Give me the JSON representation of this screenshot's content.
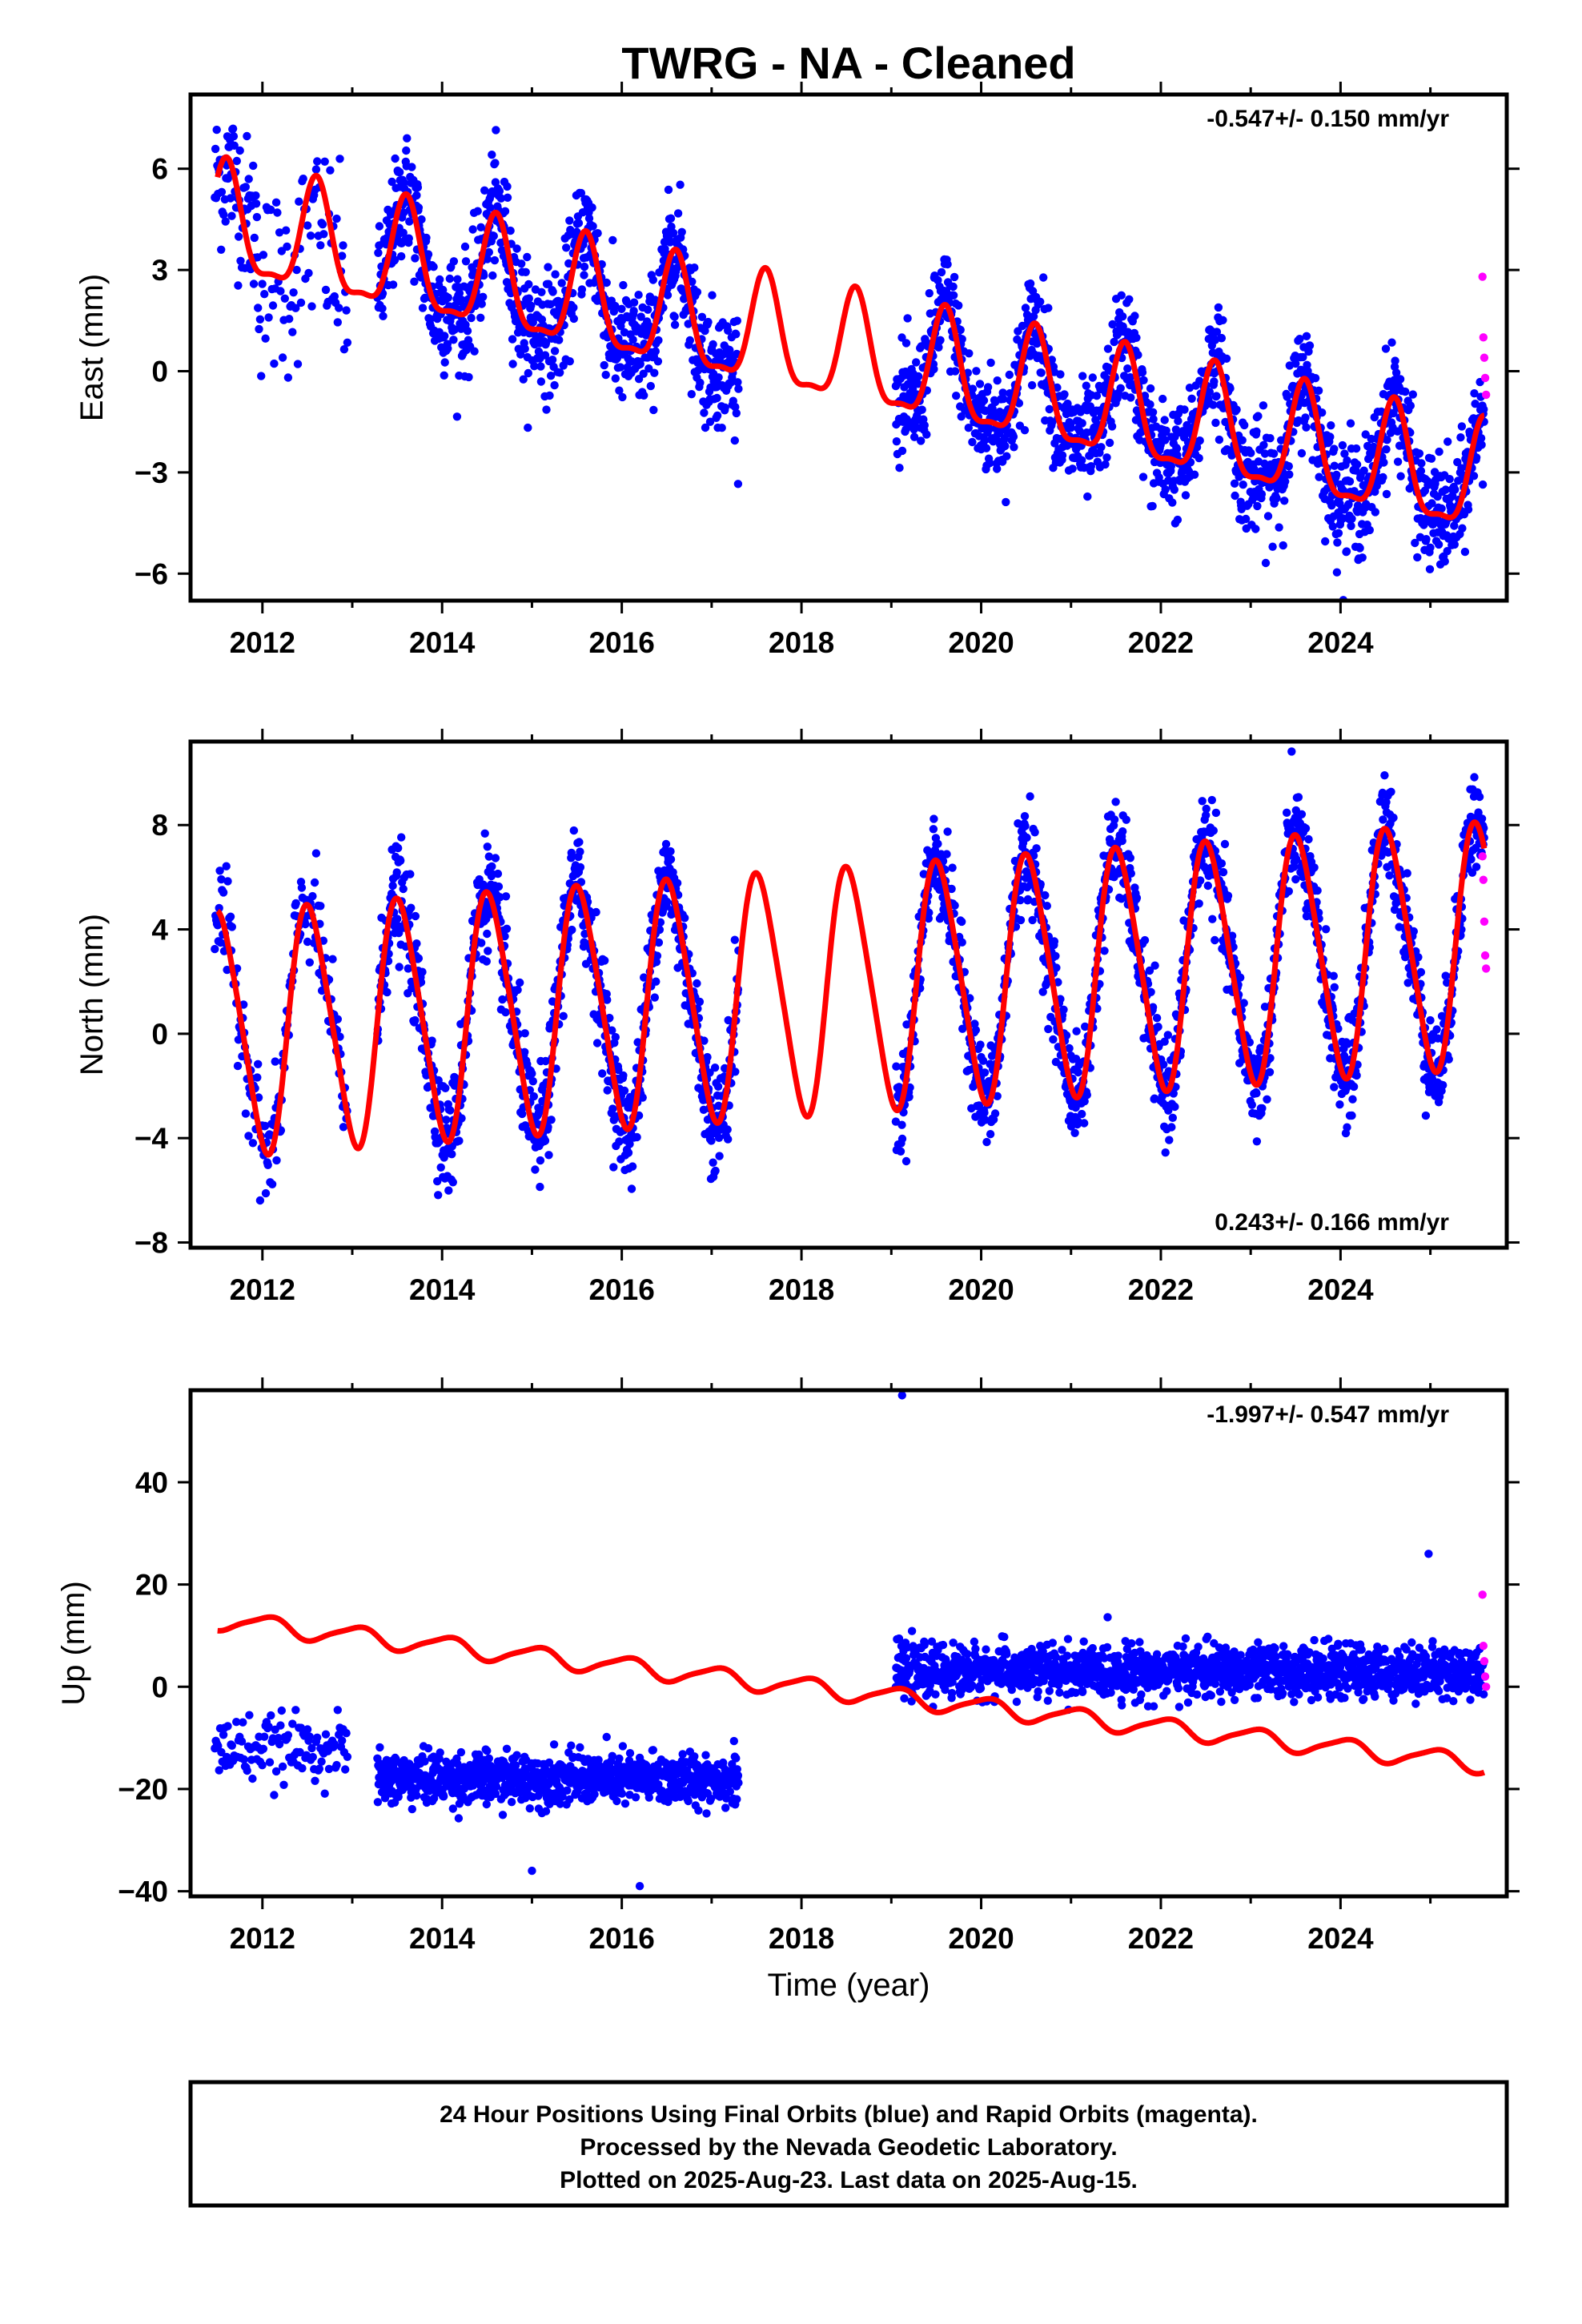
{
  "title": "TWRG  - NA - Cleaned",
  "x_axis_label": "Time (year)",
  "caption": [
    "24 Hour Positions Using Final Orbits (blue) and Rapid Orbits (magenta).",
    "Processed by the Nevada Geodetic Laboratory.",
    "Plotted on 2025-Aug-23. Last data on 2025-Aug-15."
  ],
  "colors": {
    "final_orbits": "#0000ff",
    "rapid_orbits": "#ff00ff",
    "model": "#ff0000",
    "frame": "#000000"
  },
  "chart_data": [
    {
      "type": "scatter",
      "component": "east",
      "ylabel": "East (mm)",
      "rate_text": "-0.547+/- 0.150 mm/yr",
      "rate_position": "top-right",
      "xlim": [
        2011.2,
        2025.85
      ],
      "ylim": [
        -6.8,
        8.2
      ],
      "x_ticks": [
        2012,
        2014,
        2016,
        2018,
        2020,
        2022,
        2024
      ],
      "y_ticks": [
        -6,
        -3,
        0,
        3,
        6
      ],
      "grid": false,
      "series": [
        {
          "kind": "final_orbits",
          "segments": [
            {
              "start": 2011.47,
              "end": 2011.95,
              "step": 0.007,
              "offset": 5.6,
              "spread": 2.0
            },
            {
              "start": 2011.95,
              "end": 2012.95,
              "step": 0.012,
              "offset": 2.5,
              "spread": 2.6
            },
            {
              "start": 2013.28,
              "end": 2017.3,
              "step": 0.0045,
              "offset": 0,
              "spread": 1.6
            },
            {
              "start": 2019.05,
              "end": 2025.6,
              "step": 0.0045,
              "offset": 0,
              "spread": 1.5
            }
          ]
        },
        {
          "kind": "rapid_orbits",
          "x": [
            2025.58,
            2025.59,
            2025.6,
            2025.61,
            2025.62
          ],
          "y": [
            2.8,
            1.0,
            0.4,
            -0.2,
            -0.7
          ]
        },
        {
          "kind": "model",
          "trend_start": 2011.5,
          "trend_start_value": 4.3,
          "rate_mm_yr": -0.547,
          "annual_amp": 1.6,
          "annual_peak": 0.6,
          "semiannual_amp": 0.5,
          "semiannual_peak": 0.1,
          "sample_points": {
            "x": [
              2011.5,
              2013.6,
              2016.6,
              2018.6,
              2020.6,
              2022.6,
              2024.6,
              2025.6
            ],
            "y": [
              5.5,
              5.3,
              3.6,
              2.6,
              1.4,
              0.2,
              -0.8,
              -1.2
            ]
          }
        }
      ]
    },
    {
      "type": "scatter",
      "component": "north",
      "ylabel": "North (mm)",
      "rate_text": "0.243+/- 0.166 mm/yr",
      "rate_position": "bottom-right",
      "xlim": [
        2011.2,
        2025.85
      ],
      "ylim": [
        -8.2,
        11.2
      ],
      "x_ticks": [
        2012,
        2014,
        2016,
        2018,
        2020,
        2022,
        2024
      ],
      "y_ticks": [
        -8,
        -4,
        0,
        4,
        8
      ],
      "grid": false,
      "series": [
        {
          "kind": "final_orbits",
          "segments": [
            {
              "start": 2011.47,
              "end": 2012.95,
              "step": 0.008,
              "offset": 0,
              "spread": 1.8
            },
            {
              "start": 2013.28,
              "end": 2017.3,
              "step": 0.0045,
              "offset": 0,
              "spread": 1.9
            },
            {
              "start": 2019.05,
              "end": 2025.6,
              "step": 0.0045,
              "offset": 0,
              "spread": 1.7
            }
          ]
        },
        {
          "kind": "rapid_orbits",
          "x": [
            2025.58,
            2025.59,
            2025.6,
            2025.61,
            2025.62
          ],
          "y": [
            6.8,
            5.9,
            4.3,
            3.0,
            2.5
          ]
        },
        {
          "kind": "model",
          "trend_start": 2011.5,
          "trend_start_value": 0.0,
          "rate_mm_yr": 0.243,
          "annual_amp": 4.6,
          "annual_peak": 0.53,
          "semiannual_amp": 0.6,
          "semiannual_peak": 0.4,
          "sample_points": {
            "x": [
              2011.5,
              2012.5,
              2013.5,
              2016.5,
              2019.5,
              2022.5,
              2025.5
            ],
            "y": [
              4.2,
              4.5,
              4.7,
              5.5,
              6.2,
              6.9,
              7.7
            ]
          }
        }
      ]
    },
    {
      "type": "scatter",
      "component": "up",
      "ylabel": "Up (mm)",
      "rate_text": "-1.997+/- 0.547 mm/yr",
      "rate_position": "top-right",
      "xlim": [
        2011.2,
        2025.85
      ],
      "ylim": [
        -41,
        58
      ],
      "x_ticks": [
        2012,
        2014,
        2016,
        2018,
        2020,
        2022,
        2024
      ],
      "y_ticks": [
        -40,
        -20,
        0,
        20,
        40
      ],
      "grid": false,
      "series": [
        {
          "kind": "final_orbits",
          "segments": [
            {
              "start": 2011.47,
              "end": 2012.95,
              "step": 0.012,
              "offset": -12,
              "spread": 5.5
            },
            {
              "start": 2013.28,
              "end": 2017.3,
              "step": 0.0045,
              "offset": -18,
              "spread": 4.5
            },
            {
              "start": 2019.05,
              "end": 2025.6,
              "step": 0.0045,
              "offset": 3,
              "spread": 4.5
            }
          ],
          "outliers": {
            "x": [
              2019.12,
              2016.2,
              2015.0,
              2024.98
            ],
            "y": [
              57,
              -39,
              -36,
              26
            ]
          }
        },
        {
          "kind": "rapid_orbits",
          "x": [
            2025.58,
            2025.59,
            2025.6,
            2025.61,
            2025.62
          ],
          "y": [
            18,
            8,
            5,
            2,
            0
          ]
        },
        {
          "kind": "model",
          "trend_start": 2011.5,
          "trend_start_value": 13.0,
          "rate_mm_yr": -1.997,
          "annual_amp": 1.8,
          "annual_peak": 0.05,
          "semiannual_amp": 0.4,
          "semiannual_peak": 0.2,
          "sample_points": {
            "x": [
              2011.5,
              2014.5,
              2018.0,
              2021.5,
              2025.6
            ],
            "y": [
              12,
              6,
              0,
              -8,
              -15
            ]
          }
        }
      ]
    }
  ]
}
